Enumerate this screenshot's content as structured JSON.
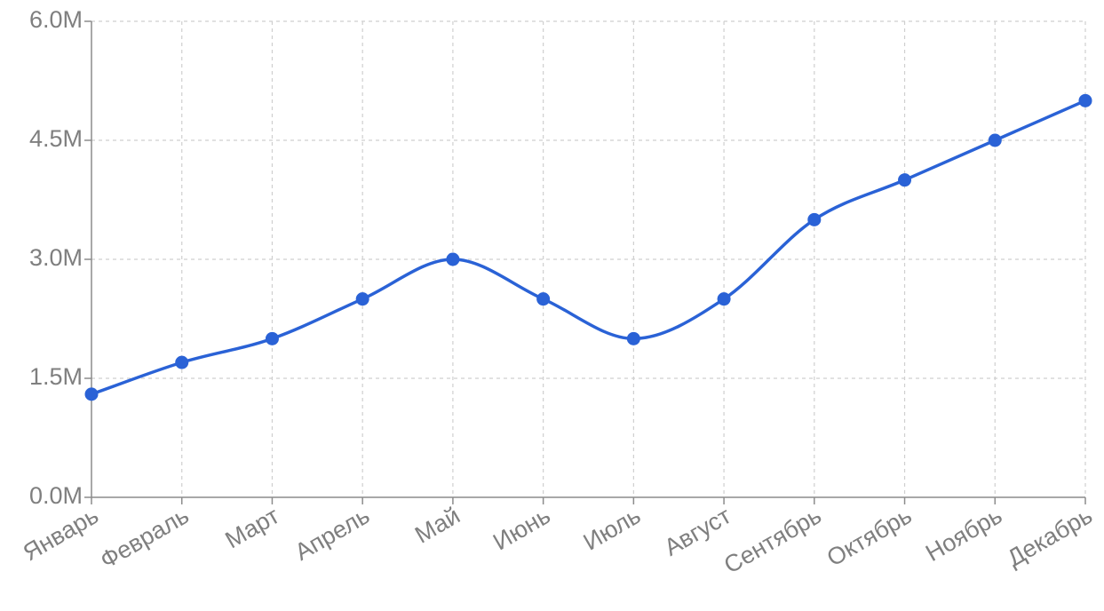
{
  "chart_data": {
    "type": "line",
    "title": "",
    "xlabel": "",
    "ylabel": "",
    "categories": [
      "Январь",
      "Февраль",
      "Март",
      "Апрель",
      "Май",
      "Июнь",
      "Июль",
      "Август",
      "Сентябрь",
      "Октябрь",
      "Ноябрь",
      "Декабрь"
    ],
    "series": [
      {
        "values": [
          1.3,
          1.7,
          2.0,
          2.5,
          3.0,
          2.5,
          2.0,
          2.5,
          3.5,
          4.0,
          4.5,
          5.0
        ],
        "color": "#2a62d6"
      }
    ],
    "ylim": [
      0,
      6
    ],
    "y_ticks": [
      0,
      1.5,
      3.0,
      4.5,
      6.0
    ],
    "y_tick_labels": [
      "0.0M",
      "1.5M",
      "3.0M",
      "4.5M",
      "6.0M"
    ],
    "grid": true,
    "smooth": true,
    "legend": "none"
  }
}
